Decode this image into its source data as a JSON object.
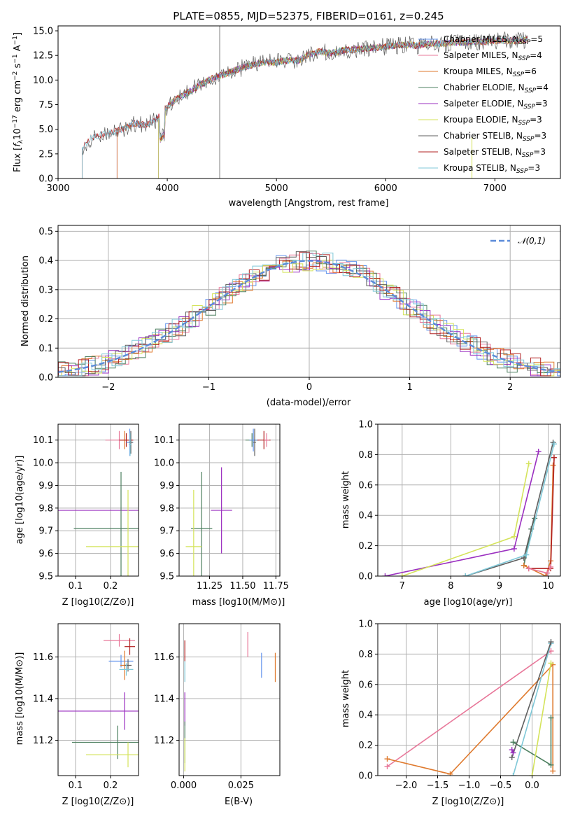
{
  "colors": {
    "chabrier_miles": "#6495ED",
    "salpeter_miles": "#E8789A",
    "kroupa_miles": "#DF7A2E",
    "chabrier_elodie": "#4E8060",
    "salpeter_elodie": "#9B30C0",
    "kroupa_elodie": "#D4E35A",
    "chabrier_stelib": "#5F5F5F",
    "salpeter_stelib": "#B22222",
    "kroupa_stelib": "#7FC8D8",
    "normal_fit": "#5B8BD9",
    "grid": "#B0B0B0"
  },
  "chart_data": [
    {
      "id": "spectrum",
      "type": "line",
      "title": "PLATE=0855, MJD=52375, FIBERID=0161, z=0.245",
      "xlabel": "wavelength [Angstrom, rest frame]",
      "ylabel": "Flux [f_λ 10^-17 erg cm^-2 s^-1 A^-1]",
      "xlim": [
        3000,
        7600
      ],
      "ylim": [
        0,
        15.5
      ],
      "xticks": [
        "3000",
        "4000",
        "5000",
        "6000",
        "7000"
      ],
      "yticks": [
        "0.0",
        "2.5",
        "5.0",
        "7.5",
        "10.0",
        "12.5",
        "15.0"
      ],
      "grid": false,
      "legend_position": "top-right",
      "data_sketch": [
        [
          3220,
          3.2
        ],
        [
          3300,
          4.1
        ],
        [
          3400,
          4.5
        ],
        [
          3500,
          4.7
        ],
        [
          3600,
          5.0
        ],
        [
          3700,
          5.6
        ],
        [
          3800,
          5.4
        ],
        [
          3900,
          6.0
        ],
        [
          4000,
          7.3
        ],
        [
          4100,
          8.2
        ],
        [
          4200,
          8.8
        ],
        [
          4300,
          9.5
        ],
        [
          4400,
          10.1
        ],
        [
          4500,
          10.5
        ],
        [
          4600,
          10.9
        ],
        [
          4700,
          11.3
        ],
        [
          4800,
          11.6
        ],
        [
          4900,
          11.8
        ],
        [
          5000,
          11.8
        ],
        [
          5100,
          12.0
        ],
        [
          5200,
          12.0
        ],
        [
          5300,
          12.6
        ],
        [
          5400,
          12.9
        ],
        [
          5500,
          12.7
        ],
        [
          5600,
          13.0
        ],
        [
          5700,
          13.1
        ],
        [
          5800,
          13.2
        ],
        [
          5900,
          13.3
        ],
        [
          6000,
          13.4
        ],
        [
          6100,
          13.5
        ],
        [
          6200,
          13.6
        ],
        [
          6300,
          13.5
        ],
        [
          6400,
          13.7
        ],
        [
          6500,
          13.7
        ],
        [
          6600,
          13.8
        ],
        [
          6700,
          13.8
        ],
        [
          6800,
          13.9
        ],
        [
          6900,
          13.9
        ],
        [
          7000,
          14.0
        ],
        [
          7100,
          14.0
        ],
        [
          7200,
          14.0
        ],
        [
          7300,
          14.1
        ]
      ],
      "series": [
        {
          "name": "Chabrier MILES, N_SSP=5",
          "start": 3540,
          "color_key": "chabrier_miles"
        },
        {
          "name": "Salpeter MILES, N_SSP=4",
          "start": 3540,
          "color_key": "salpeter_miles"
        },
        {
          "name": "Kroupa MILES, N_SSP=6",
          "start": 3540,
          "color_key": "kroupa_miles"
        },
        {
          "name": "Chabrier ELODIE, N_SSP=4",
          "start": 3920,
          "color_key": "chabrier_elodie"
        },
        {
          "name": "Salpeter ELODIE, N_SSP=3",
          "start": 3920,
          "color_key": "salpeter_elodie"
        },
        {
          "name": "Kroupa ELODIE, N_SSP=3",
          "start": 3920,
          "color_key": "kroupa_elodie"
        },
        {
          "name": "Chabrier STELIB, N_SSP=3",
          "start": 3220,
          "color_key": "chabrier_stelib"
        },
        {
          "name": "Salpeter STELIB, N_SSP=3",
          "start": 3220,
          "color_key": "salpeter_stelib"
        },
        {
          "name": "Kroupa STELIB, N_SSP=3",
          "start": 3220,
          "color_key": "kroupa_stelib"
        }
      ]
    },
    {
      "id": "residuals",
      "type": "line",
      "xlabel": "(data-model)/error",
      "ylabel": "Normed distribution",
      "xlim": [
        -2.5,
        2.5
      ],
      "ylim": [
        0,
        0.52
      ],
      "xticks": [
        "−2",
        "−1",
        "0",
        "1",
        "2"
      ],
      "yticks": [
        "0.0",
        "0.1",
        "0.2",
        "0.3",
        "0.4",
        "0.5"
      ],
      "grid": true,
      "legend": "𝒩(0,1)",
      "legend_position": "top-right",
      "note": "step histograms of the nine fits and a dashed standard normal curve",
      "bin_width": 0.1
    },
    {
      "id": "z_age",
      "type": "scatter",
      "xlabel": "Z [log10(Z/Z⊙)]",
      "ylabel": "age [log10(age/yr)]",
      "xlim": [
        0.05,
        0.28
      ],
      "ylim": [
        9.5,
        10.17
      ],
      "xticks": [
        "0.1",
        "0.2"
      ],
      "yticks": [
        "9.5",
        "9.6",
        "9.7",
        "9.8",
        "9.9",
        "10.0",
        "10.1"
      ],
      "grid": true,
      "points": [
        {
          "color_key": "salpeter_miles",
          "x": 0.225,
          "xerr": 0.04,
          "y": 10.1,
          "yerr": 0.04
        },
        {
          "color_key": "kroupa_miles",
          "x": 0.24,
          "xerr": 0.012,
          "y": 10.1,
          "yerr": 0.04
        },
        {
          "color_key": "salpeter_stelib",
          "x": 0.245,
          "xerr": 0.02,
          "y": 10.1,
          "yerr": 0.03
        },
        {
          "color_key": "chabrier_miles",
          "x": 0.255,
          "xerr": 0.01,
          "y": 10.09,
          "yerr": 0.06
        },
        {
          "color_key": "chabrier_stelib",
          "x": 0.258,
          "xerr": 0.006,
          "y": 10.09,
          "yerr": 0.05
        },
        {
          "color_key": "kroupa_stelib",
          "x": 0.256,
          "xerr": 0.004,
          "y": 10.08,
          "yerr": 0.05
        },
        {
          "color_key": "salpeter_elodie",
          "x": 0.24,
          "xerr": 0.19,
          "y": 9.79,
          "yerr": 0.0
        },
        {
          "color_key": "chabrier_elodie",
          "x": 0.23,
          "xerr": 0.135,
          "y": 9.71,
          "yerr": 0.25
        },
        {
          "color_key": "kroupa_elodie",
          "x": 0.25,
          "xerr": 0.12,
          "y": 9.63,
          "yerr": 0.25
        }
      ]
    },
    {
      "id": "mass_age",
      "type": "scatter",
      "xlabel": "mass [log10(M/M⊙)]",
      "ylabel": "",
      "xlim": [
        11.02,
        11.78
      ],
      "ylim": [
        9.5,
        10.17
      ],
      "xticks": [
        "11.25",
        "11.50",
        "11.75"
      ],
      "yticks": [
        "9.5",
        "9.6",
        "9.7",
        "9.8",
        "9.9",
        "10.0",
        "10.1"
      ],
      "grid": true,
      "points": [
        {
          "color_key": "chabrier_elodie",
          "x": 11.57,
          "xerr": 0.05,
          "y": 10.1,
          "yerr": 0.03
        },
        {
          "color_key": "chabrier_miles",
          "x": 11.58,
          "xerr": 0.03,
          "y": 10.1,
          "yerr": 0.05
        },
        {
          "color_key": "chabrier_stelib",
          "x": 11.59,
          "xerr": 0.01,
          "y": 10.09,
          "yerr": 0.06
        },
        {
          "color_key": "salpeter_stelib",
          "x": 11.66,
          "xerr": 0.05,
          "y": 10.1,
          "yerr": 0.04
        },
        {
          "color_key": "salpeter_miles",
          "x": 11.68,
          "xerr": 0.02,
          "y": 10.1,
          "yerr": 0.03
        },
        {
          "color_key": "salpeter_elodie",
          "x": 11.34,
          "xerr": 0.08,
          "y": 9.79,
          "yerr": 0.19
        },
        {
          "color_key": "chabrier_elodie",
          "x": 11.19,
          "xerr": 0.08,
          "y": 9.71,
          "yerr": 0.25
        },
        {
          "color_key": "kroupa_elodie",
          "x": 11.13,
          "xerr": 0.06,
          "y": 9.63,
          "yerr": 0.25
        }
      ]
    },
    {
      "id": "age_weight",
      "type": "line",
      "xlabel": "age [log10(age/yr)]",
      "ylabel": "mass weight",
      "xlim": [
        6.5,
        10.25
      ],
      "ylim": [
        0,
        1
      ],
      "xticks": [
        "7",
        "8",
        "9",
        "10"
      ],
      "yticks": [
        "0.0",
        "0.2",
        "0.4",
        "0.6",
        "0.8",
        "1.0"
      ],
      "grid": true,
      "series": [
        {
          "color_key": "salpeter_elodie",
          "x": [
            6.65,
            9.3,
            9.8
          ],
          "y": [
            0.0,
            0.18,
            0.82
          ]
        },
        {
          "color_key": "kroupa_elodie",
          "x": [
            7.0,
            9.3,
            9.6
          ],
          "y": [
            0.0,
            0.26,
            0.74
          ]
        },
        {
          "color_key": "chabrier_elodie",
          "x": [
            9.5,
            9.65,
            9.72
          ],
          "y": [
            0.07,
            0.31,
            0.38
          ]
        },
        {
          "color_key": "chabrier_stelib",
          "x": [
            8.3,
            9.5,
            10.1
          ],
          "y": [
            0.0,
            0.12,
            0.88
          ]
        },
        {
          "color_key": "kroupa_stelib",
          "x": [
            8.3,
            9.55,
            10.12
          ],
          "y": [
            0.0,
            0.14,
            0.87
          ]
        },
        {
          "color_key": "kroupa_miles",
          "x": [
            9.5,
            9.95,
            10.05,
            10.1
          ],
          "y": [
            0.07,
            0.0,
            0.1,
            0.73
          ]
        },
        {
          "color_key": "salpeter_stelib",
          "x": [
            9.6,
            10.05,
            10.12
          ],
          "y": [
            0.05,
            0.05,
            0.78
          ]
        },
        {
          "color_key": "salpeter_miles",
          "x": [
            9.6,
            9.98,
            10.05
          ],
          "y": [
            0.05,
            0.02,
            0.06
          ]
        }
      ]
    },
    {
      "id": "z_mass",
      "type": "scatter",
      "xlabel": "Z [log10(Z/Z⊙)]",
      "ylabel": "mass [log10(M/M⊙)]",
      "xlim": [
        0.05,
        0.28
      ],
      "ylim": [
        11.03,
        11.76
      ],
      "xticks": [
        "0.1",
        "0.2"
      ],
      "yticks": [
        "11.2",
        "11.4",
        "11.6"
      ],
      "grid": true,
      "points": [
        {
          "color_key": "salpeter_miles",
          "x": 0.225,
          "xerr": 0.045,
          "y": 11.68,
          "yerr": 0.03
        },
        {
          "color_key": "salpeter_stelib",
          "x": 0.255,
          "xerr": 0.015,
          "y": 11.65,
          "yerr": 0.04
        },
        {
          "color_key": "chabrier_miles",
          "x": 0.23,
          "xerr": 0.035,
          "y": 11.58,
          "yerr": 0.03
        },
        {
          "color_key": "kroupa_miles",
          "x": 0.24,
          "xerr": 0.012,
          "y": 11.56,
          "yerr": 0.07
        },
        {
          "color_key": "chabrier_stelib",
          "x": 0.25,
          "xerr": 0.01,
          "y": 11.56,
          "yerr": 0.03
        },
        {
          "color_key": "kroupa_stelib",
          "x": 0.245,
          "xerr": 0.02,
          "y": 11.54,
          "yerr": 0.03
        },
        {
          "color_key": "salpeter_elodie",
          "x": 0.24,
          "xerr": 0.19,
          "y": 11.34,
          "yerr": 0.09
        },
        {
          "color_key": "chabrier_elodie",
          "x": 0.22,
          "xerr": 0.13,
          "y": 11.19,
          "yerr": 0.08
        },
        {
          "color_key": "kroupa_elodie",
          "x": 0.25,
          "xerr": 0.12,
          "y": 11.13,
          "yerr": 0.06
        }
      ]
    },
    {
      "id": "ebv_mass",
      "type": "scatter",
      "xlabel": "E(B-V)",
      "ylabel": "",
      "xlim": [
        -0.002,
        0.042
      ],
      "ylim": [
        11.03,
        11.76
      ],
      "xticks": [
        "0.000",
        "0.025"
      ],
      "yticks": [
        "11.2",
        "11.4",
        "11.6"
      ],
      "grid": true,
      "points": [
        {
          "color_key": "salpeter_miles",
          "x": 0.028,
          "xerr": 0,
          "y": 11.66,
          "yerr": 0.06
        },
        {
          "color_key": "chabrier_miles",
          "x": 0.034,
          "xerr": 0,
          "y": 11.56,
          "yerr": 0.06
        },
        {
          "color_key": "kroupa_miles",
          "x": 0.04,
          "xerr": 0,
          "y": 11.55,
          "yerr": 0.07
        },
        {
          "color_key": "salpeter_stelib",
          "x": 0.0005,
          "xerr": 0,
          "y": 11.63,
          "yerr": 0.05
        },
        {
          "color_key": "kroupa_stelib",
          "x": 0.0005,
          "xerr": 0,
          "y": 11.53,
          "yerr": 0.05
        },
        {
          "color_key": "salpeter_elodie",
          "x": 0.0005,
          "xerr": 0,
          "y": 11.35,
          "yerr": 0.08
        },
        {
          "color_key": "chabrier_elodie",
          "x": 0.0005,
          "xerr": 0,
          "y": 11.19,
          "yerr": 0.1
        },
        {
          "color_key": "kroupa_elodie",
          "x": 0.0005,
          "xerr": 0,
          "y": 11.13,
          "yerr": 0.08
        }
      ]
    },
    {
      "id": "z_weight",
      "type": "line",
      "xlabel": "Z [log10(Z/Z⊙)]",
      "ylabel": "mass weight",
      "xlim": [
        -2.45,
        0.45
      ],
      "ylim": [
        0,
        1
      ],
      "xticks": [
        "−2.0",
        "−1.5",
        "−1.0",
        "−0.5",
        "0.0"
      ],
      "yticks": [
        "0.0",
        "0.2",
        "0.4",
        "0.6",
        "0.8",
        "1.0"
      ],
      "grid": true,
      "series": [
        {
          "color_key": "salpeter_miles",
          "x": [
            -2.3,
            0.3
          ],
          "y": [
            0.06,
            0.82
          ]
        },
        {
          "color_key": "kroupa_miles",
          "x": [
            -2.3,
            -1.3,
            0.33,
            0.33
          ],
          "y": [
            0.11,
            0.01,
            0.73,
            0.03
          ]
        },
        {
          "color_key": "chabrier_elodie",
          "x": [
            -0.3,
            0.3,
            0.3
          ],
          "y": [
            0.22,
            0.07,
            0.38
          ]
        },
        {
          "color_key": "kroupa_stelib",
          "x": [
            -0.3,
            0.3
          ],
          "y": [
            0.0,
            0.87
          ]
        },
        {
          "color_key": "chabrier_stelib",
          "x": [
            -0.32,
            0.3
          ],
          "y": [
            0.12,
            0.88
          ]
        },
        {
          "color_key": "kroupa_elodie",
          "x": [
            0.0,
            0.3
          ],
          "y": [
            0.0,
            0.74
          ]
        },
        {
          "color_key": "salpeter_elodie",
          "x": [
            -0.32,
            -0.3
          ],
          "y": [
            0.17,
            0.15
          ]
        }
      ]
    }
  ]
}
